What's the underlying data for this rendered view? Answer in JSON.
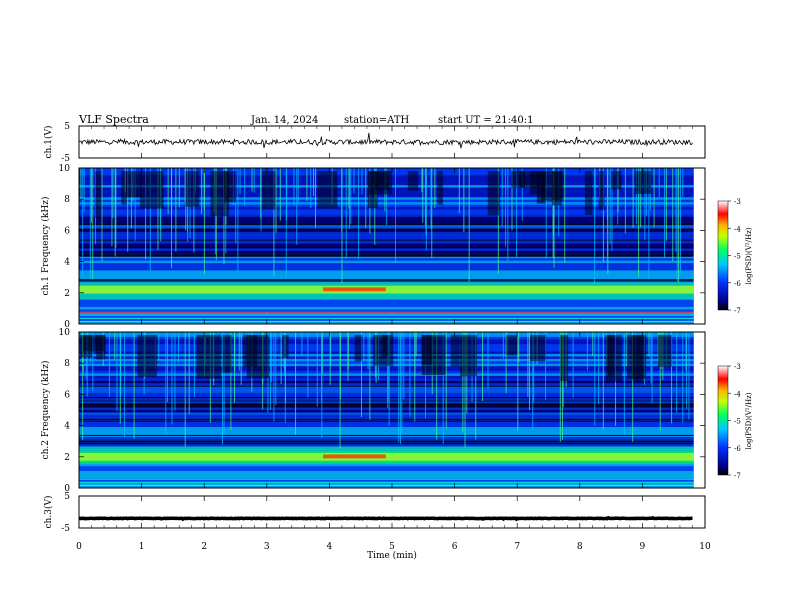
{
  "header": {
    "title": "VLF Spectra",
    "date": "Jan. 14, 2024",
    "station": "station=ATH",
    "start": "start UT = 21:40:1"
  },
  "chart_data": [
    {
      "type": "line",
      "title": "",
      "ylabel": "ch.1(V)",
      "xlim": [
        0,
        10
      ],
      "ylim": [
        -5,
        5
      ],
      "yticks": [
        "5",
        "-5"
      ],
      "series": [
        {
          "description_level": "noisy waveform near 0 V",
          "mean": 0,
          "x_range": [
            0,
            9.8
          ]
        }
      ],
      "color": "#000000"
    },
    {
      "type": "heatmap",
      "ylabel": "ch.1 Frequency (kHz)",
      "xlim": [
        0,
        10
      ],
      "ylim": [
        0,
        10
      ],
      "yticks": [
        "0",
        "2",
        "4",
        "6",
        "8",
        "10"
      ],
      "colorbar": {
        "label": "log(PSD)(V²/Hz)",
        "ticks": [
          "-3",
          "-4",
          "-5",
          "-6",
          "-7"
        ],
        "range": [
          -7,
          -3
        ]
      },
      "features": {
        "bright_band_khz": 2.2,
        "hot_segment_min": [
          3.9,
          4.9
        ],
        "strong_line_khz": 0.8
      }
    },
    {
      "type": "heatmap",
      "ylabel": "ch.2 Frequency (kHz)",
      "xlim": [
        0,
        10
      ],
      "ylim": [
        0,
        10
      ],
      "yticks": [
        "0",
        "2",
        "4",
        "6",
        "8",
        "10"
      ],
      "colorbar": {
        "label": "log(PSD)(V²/Hz)",
        "ticks": [
          "-3",
          "-4",
          "-5",
          "-6",
          "-7"
        ],
        "range": [
          -7,
          -3
        ]
      },
      "features": {
        "bright_band_khz": 2.0,
        "hot_segment_min": [
          3.9,
          4.9
        ]
      }
    },
    {
      "type": "line",
      "ylabel": "ch.3(V)",
      "xlim": [
        0,
        10
      ],
      "ylim": [
        -5,
        5
      ],
      "yticks": [
        "5",
        "-5"
      ],
      "xticks": [
        "0",
        "1",
        "2",
        "3",
        "4",
        "5",
        "6",
        "7",
        "8",
        "9",
        "10"
      ],
      "xlabel": "Time (min)",
      "series": [
        {
          "description_level": "flat thick trace",
          "value": -2,
          "x_range": [
            0,
            9.8
          ]
        }
      ],
      "color": "#000000"
    }
  ]
}
